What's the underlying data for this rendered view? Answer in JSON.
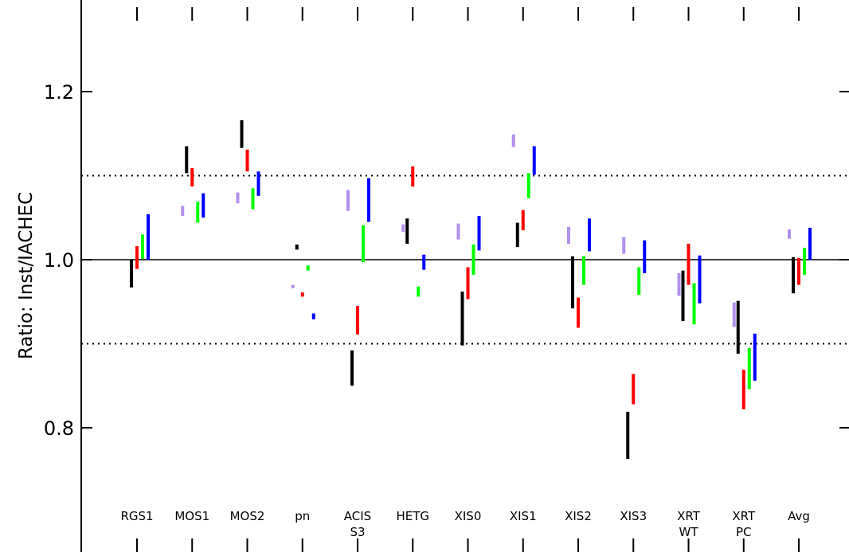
{
  "chart_data": {
    "type": "range-bar",
    "title": "",
    "xlabel": "",
    "ylabel": "Ratio: Inst/IACHEC",
    "ylim": [
      0.68,
      1.3
    ],
    "yticks": [
      0.8,
      1.0,
      1.2
    ],
    "ytick_labels": [
      "0.8",
      "1.0",
      "1.2"
    ],
    "grid": false,
    "reference_lines": [
      {
        "y": 1.0,
        "style": "solid"
      },
      {
        "y": 1.1,
        "style": "dotted"
      },
      {
        "y": 0.9,
        "style": "dotted"
      }
    ],
    "categories": [
      {
        "line1": "RGS1",
        "line2": ""
      },
      {
        "line1": "MOS1",
        "line2": ""
      },
      {
        "line1": "MOS2",
        "line2": ""
      },
      {
        "line1": "pn",
        "line2": ""
      },
      {
        "line1": "ACIS",
        "line2": "S3"
      },
      {
        "line1": "HETG",
        "line2": ""
      },
      {
        "line1": "XIS0",
        "line2": ""
      },
      {
        "line1": "XIS1",
        "line2": ""
      },
      {
        "line1": "XIS2",
        "line2": ""
      },
      {
        "line1": "XIS3",
        "line2": ""
      },
      {
        "line1": "XRT",
        "line2": "WT"
      },
      {
        "line1": "XRT",
        "line2": "PC"
      },
      {
        "line1": "Avg",
        "line2": ""
      }
    ],
    "series": [
      {
        "color": "#b191ee",
        "ranges": [
          null,
          [
            1.052,
            1.064
          ],
          [
            1.067,
            1.08
          ],
          [
            0.966,
            0.97
          ],
          [
            1.058,
            1.083
          ],
          [
            1.033,
            1.042
          ],
          [
            1.024,
            1.043
          ],
          [
            1.134,
            1.149
          ],
          [
            1.019,
            1.039
          ],
          [
            1.007,
            1.027
          ],
          [
            0.957,
            0.984
          ],
          [
            0.92,
            0.949
          ],
          [
            1.025,
            1.036
          ]
        ]
      },
      {
        "color": "#000000",
        "ranges": [
          [
            0.967,
            1.0
          ],
          [
            1.103,
            1.135
          ],
          [
            1.133,
            1.166
          ],
          [
            1.012,
            1.018
          ],
          [
            0.85,
            0.892
          ],
          [
            1.019,
            1.049
          ],
          [
            0.898,
            0.962
          ],
          [
            1.015,
            1.044
          ],
          [
            0.942,
            1.004
          ],
          [
            0.763,
            0.819
          ],
          [
            0.927,
            0.987
          ],
          [
            0.888,
            0.951
          ],
          [
            0.96,
            1.003
          ]
        ]
      },
      {
        "color": "#ff0000",
        "ranges": [
          [
            0.989,
            1.016
          ],
          [
            1.087,
            1.109
          ],
          [
            1.105,
            1.131
          ],
          [
            0.956,
            0.961
          ],
          [
            0.911,
            0.945
          ],
          [
            1.087,
            1.111
          ],
          [
            0.953,
            0.991
          ],
          [
            1.035,
            1.059
          ],
          [
            0.919,
            0.955
          ],
          [
            0.828,
            0.864
          ],
          [
            0.97,
            1.019
          ],
          [
            0.822,
            0.869
          ],
          [
            0.97,
            1.002
          ]
        ]
      },
      {
        "color": "#00ff00",
        "ranges": [
          [
            1.001,
            1.03
          ],
          [
            1.044,
            1.069
          ],
          [
            1.06,
            1.085
          ],
          [
            0.987,
            0.993
          ],
          [
            0.997,
            1.041
          ],
          [
            0.956,
            0.968
          ],
          [
            0.982,
            1.018
          ],
          [
            1.073,
            1.103
          ],
          [
            0.97,
            1.004
          ],
          [
            0.958,
            0.991
          ],
          [
            0.923,
            0.972
          ],
          [
            0.846,
            0.895
          ],
          [
            0.982,
            1.014
          ]
        ]
      },
      {
        "color": "#0000ff",
        "ranges": [
          [
            1.0,
            1.054
          ],
          [
            1.05,
            1.079
          ],
          [
            1.076,
            1.105
          ],
          [
            0.929,
            0.936
          ],
          [
            1.045,
            1.097
          ],
          [
            0.988,
            1.006
          ],
          [
            1.011,
            1.052
          ],
          [
            1.101,
            1.135
          ],
          [
            1.01,
            1.049
          ],
          [
            0.984,
            1.023
          ],
          [
            0.948,
            1.005
          ],
          [
            0.856,
            0.912
          ],
          [
            1.0,
            1.038
          ]
        ]
      }
    ]
  }
}
